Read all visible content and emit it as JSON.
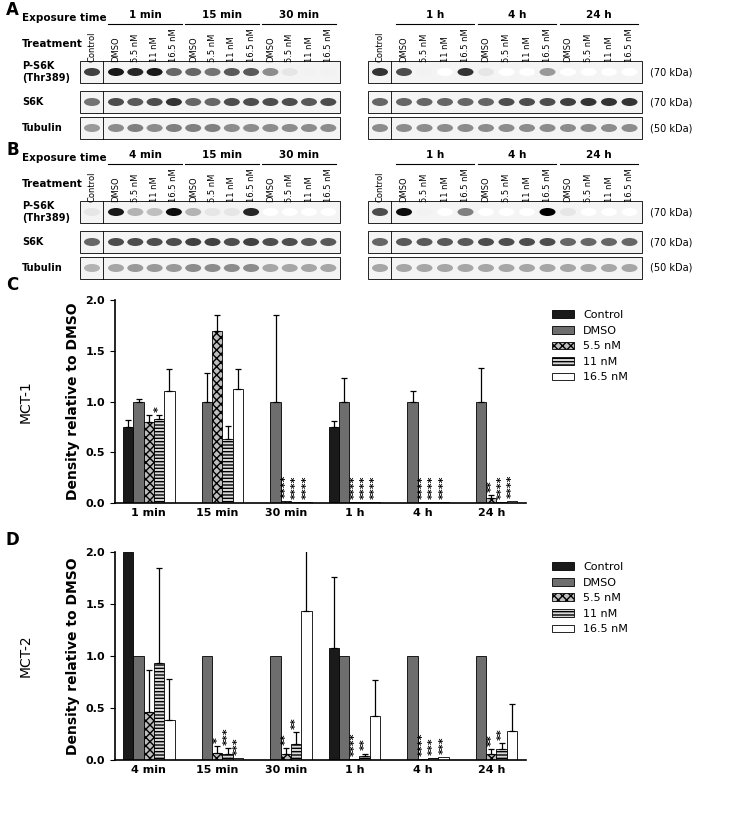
{
  "blots": [
    {
      "panel": "A",
      "exposure_label": "Exposure time",
      "treatment_label": "Treatment",
      "control": "Control",
      "treatments": [
        "DMSO",
        "5.5 nM",
        "11 nM",
        "16.5 nM"
      ],
      "halves": [
        {
          "groups": [
            "1 min",
            "15 min",
            "30 min"
          ],
          "rows": [
            {
              "label": "P-S6K\n(Thr389)",
              "intensity": [
                0.75,
                0.9,
                0.85,
                0.9,
                0.6,
                0.6,
                0.55,
                0.65,
                0.65,
                0.45,
                0.1,
                0.05,
                0.05
              ]
            },
            {
              "label": "S6K",
              "intensity": [
                0.55,
                0.7,
                0.65,
                0.7,
                0.8,
                0.6,
                0.6,
                0.7,
                0.7,
                0.7,
                0.7,
                0.65,
                0.7
              ]
            },
            {
              "label": "Tubulin",
              "intensity": [
                0.4,
                0.45,
                0.5,
                0.45,
                0.5,
                0.5,
                0.5,
                0.45,
                0.45,
                0.45,
                0.45,
                0.45,
                0.45
              ]
            }
          ]
        },
        {
          "groups": [
            "1 h",
            "4 h",
            "24 h"
          ],
          "rows": [
            {
              "size": "(70 kDa)",
              "intensity": [
                0.8,
                0.7,
                0.05,
                0.0,
                0.8,
                0.1,
                0.0,
                0.0,
                0.4,
                0.0,
                0.0,
                0.0,
                0.0
              ]
            },
            {
              "size": "(70 kDa)",
              "intensity": [
                0.6,
                0.6,
                0.6,
                0.6,
                0.6,
                0.6,
                0.7,
                0.7,
                0.7,
                0.75,
                0.8,
                0.8,
                0.8
              ]
            },
            {
              "size": "(50 kDa)",
              "intensity": [
                0.45,
                0.45,
                0.45,
                0.45,
                0.45,
                0.45,
                0.45,
                0.45,
                0.45,
                0.45,
                0.45,
                0.45,
                0.45
              ]
            }
          ]
        }
      ]
    },
    {
      "panel": "B",
      "exposure_label": "Exposure time",
      "treatment_label": "Treatment",
      "control": "Control",
      "treatments": [
        "DMSO",
        "5.5 nM",
        "11 nM",
        "16.5 nM"
      ],
      "halves": [
        {
          "groups": [
            "4 min",
            "15 min",
            "30 min"
          ],
          "rows": [
            {
              "label": "P-S6K\n(Thr389)",
              "intensity": [
                0.1,
                0.9,
                0.3,
                0.25,
                0.95,
                0.3,
                0.1,
                0.1,
                0.85,
                0.0,
                0.0,
                0.0,
                0.0
              ]
            },
            {
              "label": "S6K",
              "intensity": [
                0.6,
                0.7,
                0.7,
                0.7,
                0.7,
                0.75,
                0.75,
                0.7,
                0.75,
                0.7,
                0.7,
                0.65,
                0.65
              ]
            },
            {
              "label": "Tubulin",
              "intensity": [
                0.3,
                0.35,
                0.4,
                0.4,
                0.4,
                0.45,
                0.45,
                0.45,
                0.45,
                0.35,
                0.35,
                0.35,
                0.35
              ]
            }
          ]
        },
        {
          "groups": [
            "1 h",
            "4 h",
            "24 h"
          ],
          "rows": [
            {
              "size": "(70 kDa)",
              "intensity": [
                0.7,
                0.95,
                0.05,
                0.0,
                0.5,
                0.0,
                0.0,
                0.0,
                1.0,
                0.1,
                0.0,
                0.0,
                0.0
              ]
            },
            {
              "size": "(70 kDa)",
              "intensity": [
                0.6,
                0.65,
                0.65,
                0.65,
                0.65,
                0.7,
                0.7,
                0.7,
                0.7,
                0.6,
                0.6,
                0.6,
                0.6
              ]
            },
            {
              "size": "(50 kDa)",
              "intensity": [
                0.35,
                0.35,
                0.35,
                0.35,
                0.35,
                0.35,
                0.35,
                0.35,
                0.35,
                0.35,
                0.35,
                0.35,
                0.35
              ]
            }
          ]
        }
      ]
    }
  ],
  "chart_data": [
    {
      "type": "bar",
      "panel": "C",
      "title": "MCT-1",
      "y_label": "Density relative to DMSO",
      "categories": [
        "1 min",
        "15 min",
        "30 min",
        "1 h",
        "4 h",
        "24 h"
      ],
      "ylim": [
        0,
        2
      ],
      "yticks": [
        {
          "value": 0,
          "label": "0.0"
        },
        {
          "value": 0.5,
          "label": "0.5"
        },
        {
          "value": 1,
          "label": "1.0"
        },
        {
          "value": 1.5,
          "label": "1.5"
        },
        {
          "value": 2,
          "label": "2.0"
        }
      ],
      "legend": "right",
      "series": [
        {
          "name": "Control",
          "color": "#1a1a1a",
          "values": [
            0.75,
            null,
            null,
            0.75,
            null,
            null
          ],
          "errors": [
            0.07,
            null,
            null,
            0.06,
            null,
            null
          ],
          "significance": [
            null,
            null,
            null,
            null,
            null,
            null
          ]
        },
        {
          "name": "DMSO",
          "color": "#6e6e6e",
          "values": [
            1,
            1,
            1,
            1,
            1,
            1
          ],
          "errors": [
            0.03,
            0.28,
            0.85,
            0.23,
            0.1,
            0.33
          ],
          "significance": [
            null,
            null,
            null,
            null,
            null,
            null
          ]
        },
        {
          "name": "5.5 nM",
          "color": "#bdbdbd",
          "values": [
            0.8,
            1.7,
            0.02,
            0.01,
            0.01,
            0.05
          ],
          "errors": [
            0.07,
            0.15,
            null,
            null,
            null,
            0.03
          ],
          "significance": [
            null,
            null,
            "****",
            "****",
            "****",
            "**"
          ]
        },
        {
          "name": "11 nM",
          "color": "#d9d9d9",
          "values": [
            0.83,
            0.63,
            0.01,
            0.01,
            0.01,
            0.01
          ],
          "errors": [
            0.04,
            0.13,
            null,
            null,
            null,
            null
          ],
          "significance": [
            "*",
            null,
            "****",
            "****",
            "****",
            "****"
          ]
        },
        {
          "name": "16.5 nM",
          "color": "#ffffff",
          "values": [
            1.1,
            1.12,
            0.01,
            0.01,
            0.01,
            0.02
          ],
          "errors": [
            0.22,
            0.2,
            null,
            null,
            null,
            null
          ],
          "significance": [
            null,
            null,
            "****",
            "****",
            "****",
            "****"
          ]
        }
      ]
    },
    {
      "type": "bar",
      "panel": "D",
      "title": "MCT-2",
      "y_label": "Density relative to DMSO",
      "categories": [
        "4 min",
        "15 min",
        "30 min",
        "1 h",
        "4 h",
        "24 h"
      ],
      "ylim": [
        0,
        2
      ],
      "yticks": [
        {
          "value": 0,
          "label": "0.0"
        },
        {
          "value": 0.5,
          "label": "0.5"
        },
        {
          "value": 1,
          "label": "1.0"
        },
        {
          "value": 1.5,
          "label": "1.5"
        },
        {
          "value": 2,
          "label": "2.0"
        }
      ],
      "legend": "right",
      "series": [
        {
          "name": "Control",
          "color": "#1a1a1a",
          "values": [
            2.0,
            null,
            null,
            1.08,
            null,
            null
          ],
          "errors": [
            null,
            null,
            null,
            0.68,
            null,
            null
          ],
          "significance": [
            null,
            null,
            null,
            null,
            null,
            null
          ]
        },
        {
          "name": "DMSO",
          "color": "#6e6e6e",
          "values": [
            1,
            1,
            1,
            1,
            1,
            1
          ],
          "errors": [
            null,
            null,
            null,
            null,
            null,
            null
          ],
          "significance": [
            null,
            null,
            null,
            null,
            null,
            null
          ]
        },
        {
          "name": "5.5 nM",
          "color": "#bdbdbd",
          "values": [
            0.46,
            0.07,
            0.06,
            0.01,
            0.01,
            0.06
          ],
          "errors": [
            0.4,
            0.06,
            0.05,
            null,
            null,
            0.04
          ],
          "significance": [
            null,
            "*",
            "**",
            "****",
            "****",
            "**"
          ]
        },
        {
          "name": "11 nM",
          "color": "#d9d9d9",
          "values": [
            0.93,
            0.06,
            0.15,
            0.04,
            0.02,
            0.1
          ],
          "errors": [
            0.92,
            0.05,
            0.12,
            0.02,
            null,
            0.06
          ],
          "significance": [
            null,
            "***",
            "**",
            "**",
            "***",
            "**"
          ]
        },
        {
          "name": "16.5 nM",
          "color": "#ffffff",
          "values": [
            0.38,
            0.02,
            1.43,
            0.42,
            0.03,
            0.28
          ],
          "errors": [
            0.4,
            null,
            0.6,
            0.35,
            null,
            0.26
          ],
          "significance": [
            null,
            "***",
            null,
            null,
            "***",
            null
          ]
        }
      ]
    }
  ]
}
